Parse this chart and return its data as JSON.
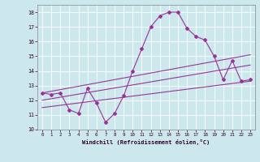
{
  "title": "",
  "xlabel": "Windchill (Refroidissement éolien,°C)",
  "xlim": [
    0,
    23
  ],
  "ylim": [
    10,
    18.5
  ],
  "xticks": [
    0,
    1,
    2,
    3,
    4,
    5,
    6,
    7,
    8,
    9,
    10,
    11,
    12,
    13,
    14,
    15,
    16,
    17,
    18,
    19,
    20,
    21,
    22,
    23
  ],
  "yticks": [
    10,
    11,
    12,
    13,
    14,
    15,
    16,
    17,
    18
  ],
  "bg_color": "#cce8ec",
  "grid_color": "#ffffff",
  "line_color": "#993399",
  "main_curve_x": [
    0,
    1,
    2,
    3,
    4,
    5,
    6,
    7,
    8,
    9,
    10,
    11,
    12,
    13,
    14,
    15,
    16,
    17,
    18,
    19,
    20,
    21,
    22,
    23
  ],
  "main_curve_y": [
    12.5,
    12.4,
    12.5,
    11.35,
    11.1,
    12.8,
    11.8,
    10.5,
    11.1,
    12.3,
    14.0,
    15.5,
    17.0,
    17.75,
    18.0,
    18.0,
    16.9,
    16.35,
    16.1,
    15.0,
    13.4,
    14.7,
    13.3,
    13.4
  ],
  "line2_x": [
    0,
    23
  ],
  "line2_y": [
    12.5,
    15.1
  ],
  "line3_x": [
    0,
    23
  ],
  "line3_y": [
    12.0,
    14.4
  ],
  "line4_x": [
    0,
    23
  ],
  "line4_y": [
    11.5,
    13.3
  ],
  "marker": "D",
  "markersize": 2.0,
  "linewidth": 0.8
}
